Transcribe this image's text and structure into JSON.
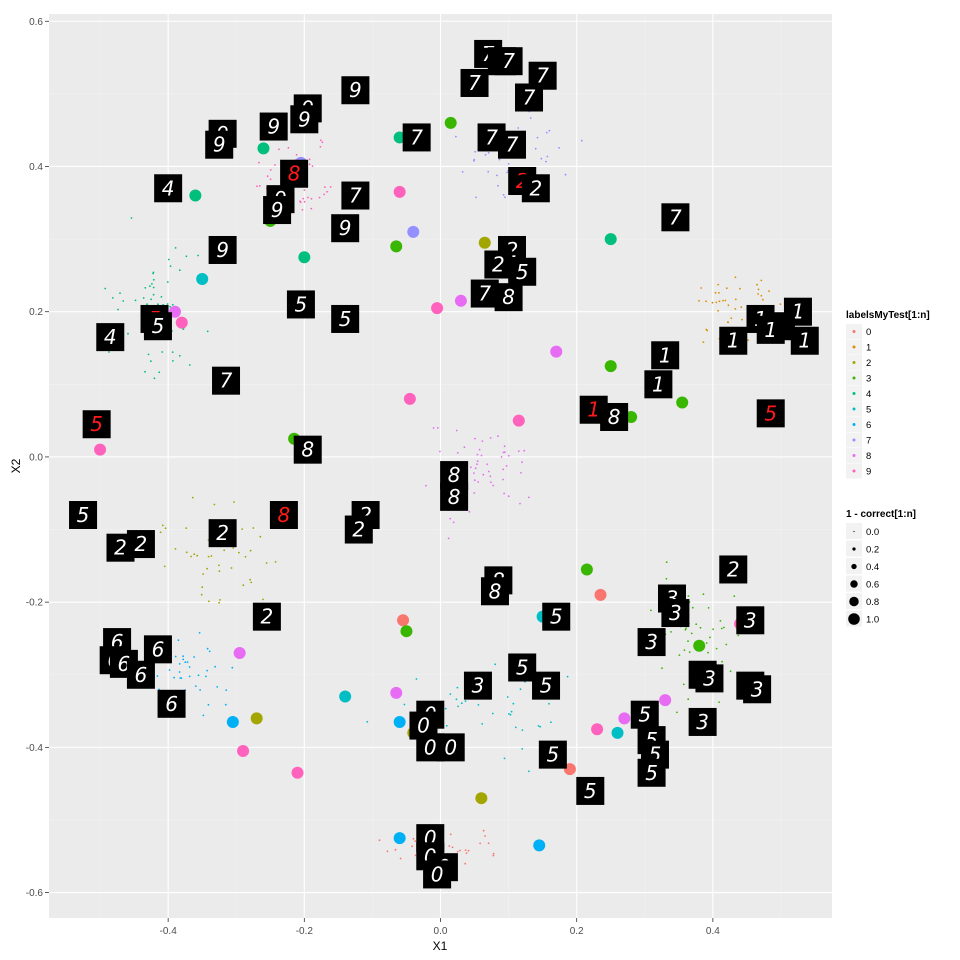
{
  "chart_data": {
    "type": "scatter",
    "title": "",
    "xlabel": "X1",
    "ylabel": "X2",
    "xlim": [
      -0.575,
      0.575
    ],
    "ylim": [
      -0.635,
      0.61
    ],
    "x_ticks": [
      -0.4,
      -0.2,
      0.0,
      0.2,
      0.4
    ],
    "x_tick_labels": [
      "-0.4",
      "-0.2",
      "0.0",
      "0.2",
      "0.4"
    ],
    "y_ticks": [
      -0.6,
      -0.4,
      -0.2,
      0.0,
      0.2,
      0.4,
      0.6
    ],
    "y_tick_labels": [
      "-0.6",
      "-0.4",
      "-0.2",
      "0.0",
      "0.2",
      "0.4",
      "0.6"
    ],
    "grid": true,
    "legend_placement": "right",
    "color_legend": {
      "title": "labelsMyTest[1:n]",
      "entries": [
        "0",
        "1",
        "2",
        "3",
        "4",
        "5",
        "6",
        "7",
        "8",
        "9"
      ],
      "colors": [
        "#F8766D",
        "#D89000",
        "#A3A500",
        "#39B600",
        "#00BF7D",
        "#00BFC4",
        "#00B0F6",
        "#9590FF",
        "#E76BF3",
        "#FF62BC"
      ]
    },
    "size_legend": {
      "title": "1 - correct[1:n]",
      "entries": [
        "0.0",
        "0.2",
        "0.4",
        "0.6",
        "0.8",
        "1.0"
      ],
      "values": [
        0.0,
        0.2,
        0.4,
        0.6,
        0.8,
        1.0
      ]
    },
    "misclassified_points": [
      {
        "x": -0.5,
        "y": 0.01,
        "label": 9
      },
      {
        "x": -0.38,
        "y": 0.185,
        "label": 9
      },
      {
        "x": -0.39,
        "y": 0.2,
        "label": 8
      },
      {
        "x": -0.36,
        "y": 0.36,
        "label": 4
      },
      {
        "x": -0.35,
        "y": 0.245,
        "label": 5
      },
      {
        "x": -0.26,
        "y": 0.425,
        "label": 4
      },
      {
        "x": -0.25,
        "y": 0.325,
        "label": 3
      },
      {
        "x": -0.205,
        "y": 0.405,
        "label": 7
      },
      {
        "x": -0.2,
        "y": 0.275,
        "label": 4
      },
      {
        "x": -0.215,
        "y": 0.025,
        "label": 3
      },
      {
        "x": -0.06,
        "y": 0.365,
        "label": 9
      },
      {
        "x": -0.06,
        "y": 0.44,
        "label": 4
      },
      {
        "x": -0.065,
        "y": 0.29,
        "label": 3
      },
      {
        "x": -0.04,
        "y": 0.31,
        "label": 7
      },
      {
        "x": -0.045,
        "y": 0.08,
        "label": 9
      },
      {
        "x": 0.015,
        "y": 0.46,
        "label": 3
      },
      {
        "x": -0.005,
        "y": 0.205,
        "label": 9
      },
      {
        "x": 0.065,
        "y": 0.295,
        "label": 2
      },
      {
        "x": 0.03,
        "y": 0.215,
        "label": 8
      },
      {
        "x": 0.115,
        "y": 0.05,
        "label": 9
      },
      {
        "x": 0.17,
        "y": 0.145,
        "label": 8
      },
      {
        "x": 0.25,
        "y": 0.3,
        "label": 4
      },
      {
        "x": 0.25,
        "y": 0.125,
        "label": 3
      },
      {
        "x": 0.28,
        "y": 0.055,
        "label": 3
      },
      {
        "x": 0.355,
        "y": 0.075,
        "label": 3
      },
      {
        "x": -0.295,
        "y": -0.27,
        "label": 8
      },
      {
        "x": -0.27,
        "y": -0.36,
        "label": 2
      },
      {
        "x": -0.305,
        "y": -0.365,
        "label": 6
      },
      {
        "x": -0.29,
        "y": -0.405,
        "label": 9
      },
      {
        "x": -0.21,
        "y": -0.435,
        "label": 9
      },
      {
        "x": -0.14,
        "y": -0.33,
        "label": 5
      },
      {
        "x": -0.065,
        "y": -0.325,
        "label": 8
      },
      {
        "x": -0.055,
        "y": -0.225,
        "label": 0
      },
      {
        "x": -0.05,
        "y": -0.24,
        "label": 3
      },
      {
        "x": -0.06,
        "y": -0.365,
        "label": 6
      },
      {
        "x": -0.04,
        "y": -0.38,
        "label": 2
      },
      {
        "x": 0.06,
        "y": -0.47,
        "label": 2
      },
      {
        "x": 0.15,
        "y": -0.22,
        "label": 5
      },
      {
        "x": 0.215,
        "y": -0.155,
        "label": 3
      },
      {
        "x": 0.235,
        "y": -0.19,
        "label": 0
      },
      {
        "x": 0.23,
        "y": -0.375,
        "label": 9
      },
      {
        "x": 0.26,
        "y": -0.38,
        "label": 5
      },
      {
        "x": 0.27,
        "y": -0.36,
        "label": 8
      },
      {
        "x": 0.19,
        "y": -0.43,
        "label": 0
      },
      {
        "x": 0.145,
        "y": -0.535,
        "label": 6
      },
      {
        "x": -0.06,
        "y": -0.525,
        "label": 6
      },
      {
        "x": 0.33,
        "y": -0.335,
        "label": 8
      },
      {
        "x": 0.38,
        "y": -0.26,
        "label": 3
      },
      {
        "x": 0.44,
        "y": -0.23,
        "label": 9
      }
    ],
    "digit_image_labels": [
      {
        "x": 0.07,
        "y": 0.555,
        "text": "7"
      },
      {
        "x": 0.09,
        "y": 0.545,
        "text": "7"
      },
      {
        "x": 0.1,
        "y": 0.545,
        "text": "7"
      },
      {
        "x": 0.15,
        "y": 0.525,
        "text": "7"
      },
      {
        "x": 0.05,
        "y": 0.515,
        "text": "7"
      },
      {
        "x": 0.13,
        "y": 0.495,
        "text": "7"
      },
      {
        "x": -0.125,
        "y": 0.505,
        "text": "9"
      },
      {
        "x": -0.195,
        "y": 0.48,
        "text": "9"
      },
      {
        "x": -0.2,
        "y": 0.465,
        "text": "9"
      },
      {
        "x": -0.245,
        "y": 0.455,
        "text": "9"
      },
      {
        "x": -0.32,
        "y": 0.445,
        "text": "9"
      },
      {
        "x": -0.325,
        "y": 0.43,
        "text": "9"
      },
      {
        "x": -0.035,
        "y": 0.44,
        "text": "7"
      },
      {
        "x": 0.075,
        "y": 0.44,
        "text": "7"
      },
      {
        "x": 0.105,
        "y": 0.43,
        "text": "7"
      },
      {
        "x": -0.215,
        "y": 0.39,
        "text": "8"
      },
      {
        "x": 0.12,
        "y": 0.38,
        "text": "2"
      },
      {
        "x": 0.14,
        "y": 0.37,
        "text": "2"
      },
      {
        "x": -0.4,
        "y": 0.37,
        "text": "4"
      },
      {
        "x": -0.125,
        "y": 0.36,
        "text": "7"
      },
      {
        "x": -0.235,
        "y": 0.355,
        "text": "9"
      },
      {
        "x": -0.24,
        "y": 0.34,
        "text": "9"
      },
      {
        "x": 0.345,
        "y": 0.33,
        "text": "7"
      },
      {
        "x": -0.14,
        "y": 0.315,
        "text": "9"
      },
      {
        "x": -0.32,
        "y": 0.285,
        "text": "9"
      },
      {
        "x": 0.105,
        "y": 0.285,
        "text": "2"
      },
      {
        "x": 0.085,
        "y": 0.265,
        "text": "2"
      },
      {
        "x": 0.12,
        "y": 0.255,
        "text": "5"
      },
      {
        "x": 0.065,
        "y": 0.225,
        "text": "7"
      },
      {
        "x": 0.1,
        "y": 0.22,
        "text": "8"
      },
      {
        "x": -0.205,
        "y": 0.21,
        "text": "5"
      },
      {
        "x": -0.42,
        "y": 0.19,
        "text": "5"
      },
      {
        "x": -0.415,
        "y": 0.18,
        "text": "5"
      },
      {
        "x": -0.14,
        "y": 0.19,
        "text": "5"
      },
      {
        "x": 0.525,
        "y": 0.2,
        "text": "1"
      },
      {
        "x": 0.47,
        "y": 0.19,
        "text": "1"
      },
      {
        "x": 0.5,
        "y": 0.18,
        "text": "1"
      },
      {
        "x": 0.485,
        "y": 0.175,
        "text": "1"
      },
      {
        "x": 0.535,
        "y": 0.16,
        "text": "1"
      },
      {
        "x": 0.43,
        "y": 0.16,
        "text": "1"
      },
      {
        "x": -0.485,
        "y": 0.165,
        "text": "4"
      },
      {
        "x": 0.33,
        "y": 0.14,
        "text": "1"
      },
      {
        "x": 0.32,
        "y": 0.1,
        "text": "1"
      },
      {
        "x": -0.315,
        "y": 0.105,
        "text": "7"
      },
      {
        "x": 0.225,
        "y": 0.065,
        "text": "1"
      },
      {
        "x": 0.255,
        "y": 0.055,
        "text": "8"
      },
      {
        "x": 0.485,
        "y": 0.06,
        "text": "5"
      },
      {
        "x": -0.505,
        "y": 0.045,
        "text": "5"
      },
      {
        "x": -0.195,
        "y": 0.01,
        "text": "8"
      },
      {
        "x": 0.02,
        "y": -0.025,
        "text": "8"
      },
      {
        "x": 0.02,
        "y": -0.055,
        "text": "8"
      },
      {
        "x": -0.525,
        "y": -0.08,
        "text": "5"
      },
      {
        "x": -0.23,
        "y": -0.08,
        "text": "8"
      },
      {
        "x": -0.11,
        "y": -0.08,
        "text": "2"
      },
      {
        "x": -0.12,
        "y": -0.1,
        "text": "2"
      },
      {
        "x": -0.32,
        "y": -0.105,
        "text": "2"
      },
      {
        "x": -0.47,
        "y": -0.125,
        "text": "2"
      },
      {
        "x": -0.44,
        "y": -0.12,
        "text": "2"
      },
      {
        "x": 0.43,
        "y": -0.155,
        "text": "2"
      },
      {
        "x": 0.085,
        "y": -0.17,
        "text": "8"
      },
      {
        "x": 0.08,
        "y": -0.185,
        "text": "8"
      },
      {
        "x": 0.34,
        "y": -0.195,
        "text": "3"
      },
      {
        "x": 0.345,
        "y": -0.215,
        "text": "3"
      },
      {
        "x": 0.455,
        "y": -0.225,
        "text": "3"
      },
      {
        "x": -0.255,
        "y": -0.22,
        "text": "2"
      },
      {
        "x": 0.17,
        "y": -0.22,
        "text": "5"
      },
      {
        "x": 0.31,
        "y": -0.255,
        "text": "3"
      },
      {
        "x": -0.475,
        "y": -0.255,
        "text": "6"
      },
      {
        "x": -0.415,
        "y": -0.265,
        "text": "6"
      },
      {
        "x": -0.48,
        "y": -0.28,
        "text": "6"
      },
      {
        "x": -0.465,
        "y": -0.285,
        "text": "6"
      },
      {
        "x": -0.44,
        "y": -0.3,
        "text": "6"
      },
      {
        "x": 0.12,
        "y": -0.29,
        "text": "5"
      },
      {
        "x": 0.385,
        "y": -0.3,
        "text": "3"
      },
      {
        "x": 0.395,
        "y": -0.305,
        "text": "3"
      },
      {
        "x": 0.055,
        "y": -0.315,
        "text": "3"
      },
      {
        "x": 0.155,
        "y": -0.315,
        "text": "5"
      },
      {
        "x": 0.455,
        "y": -0.315,
        "text": "3"
      },
      {
        "x": 0.465,
        "y": -0.32,
        "text": "3"
      },
      {
        "x": -0.395,
        "y": -0.34,
        "text": "6"
      },
      {
        "x": 0.3,
        "y": -0.355,
        "text": "5"
      },
      {
        "x": -0.015,
        "y": -0.355,
        "text": "0"
      },
      {
        "x": -0.025,
        "y": -0.37,
        "text": "0"
      },
      {
        "x": 0.385,
        "y": -0.365,
        "text": "3"
      },
      {
        "x": 0.31,
        "y": -0.39,
        "text": "5"
      },
      {
        "x": -0.015,
        "y": -0.4,
        "text": "0"
      },
      {
        "x": 0.015,
        "y": -0.4,
        "text": "0"
      },
      {
        "x": 0.165,
        "y": -0.41,
        "text": "5"
      },
      {
        "x": 0.315,
        "y": -0.41,
        "text": "5"
      },
      {
        "x": 0.31,
        "y": -0.435,
        "text": "5"
      },
      {
        "x": 0.22,
        "y": -0.46,
        "text": "5"
      },
      {
        "x": -0.015,
        "y": -0.525,
        "text": "0"
      },
      {
        "x": -0.015,
        "y": -0.55,
        "text": "0"
      },
      {
        "x": 0.005,
        "y": -0.565,
        "text": "0"
      },
      {
        "x": -0.005,
        "y": -0.575,
        "text": "0"
      }
    ],
    "red_digit_labels": [
      "8",
      "2",
      "5",
      "1",
      "5",
      "5",
      "8"
    ]
  }
}
